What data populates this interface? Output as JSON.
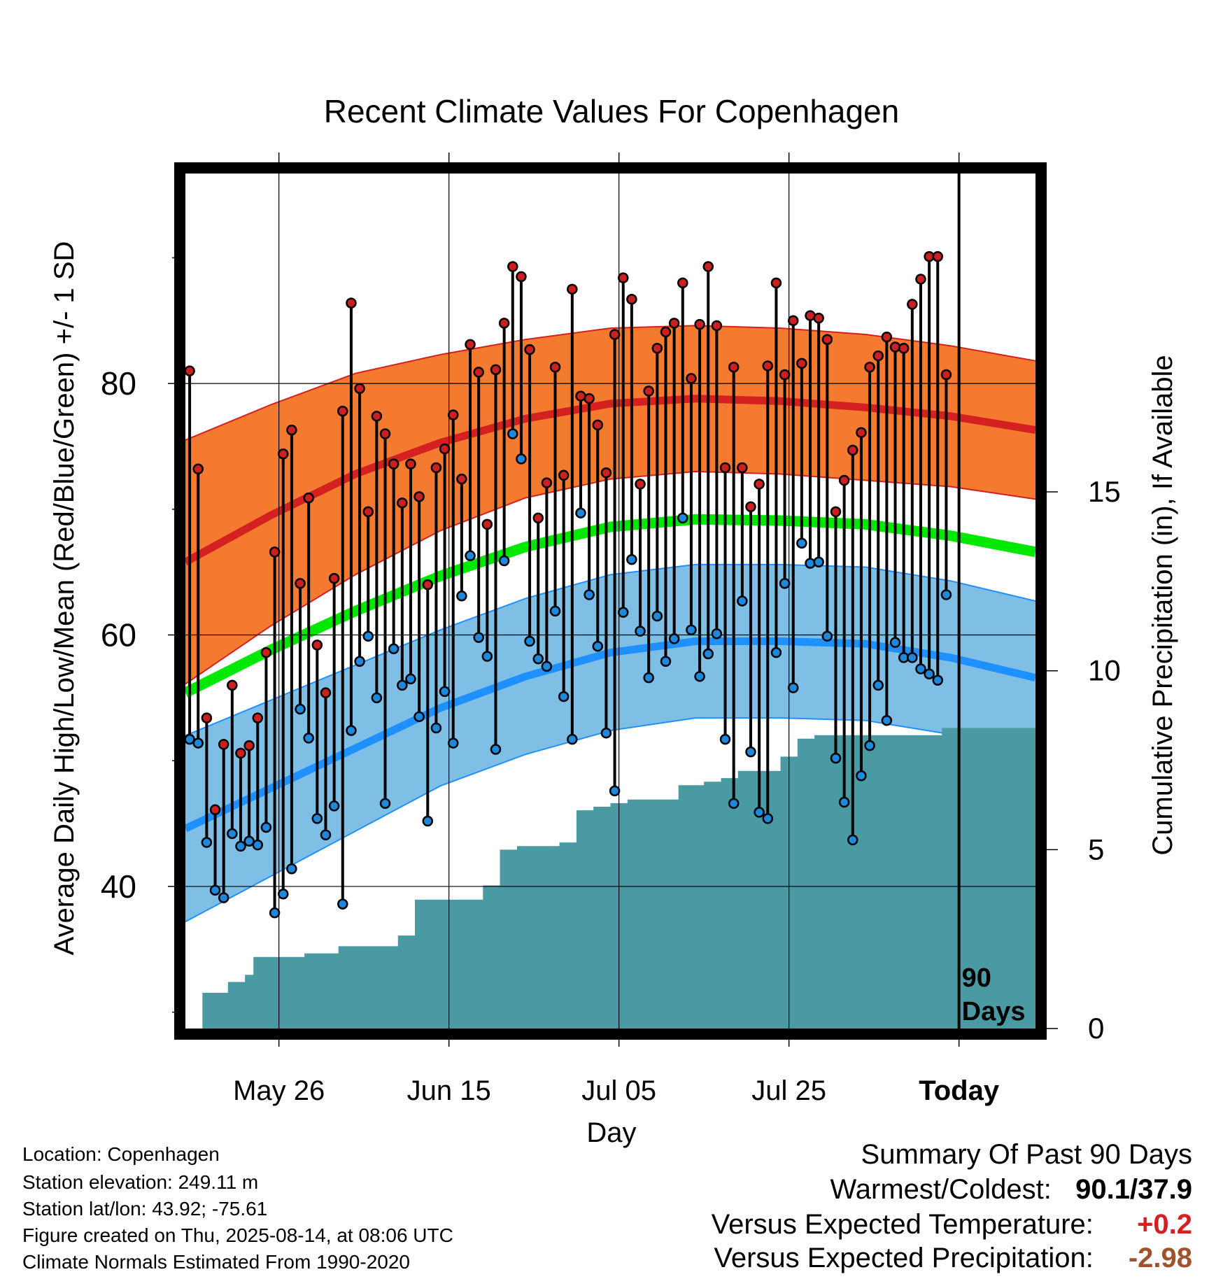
{
  "chart_data": {
    "type": "line",
    "title": "Recent Climate Values For Copenhagen",
    "ylabel": "Average Daily High/Low/Mean (Red/Blue/Green) +/- 1 SD",
    "y2label": "Cumulative Precipitation (in), If Available",
    "xlabel": "Day",
    "ylim": [
      28.7,
      96.7
    ],
    "y2lim": [
      0,
      23.9
    ],
    "yticks": [
      "40",
      "60",
      "80"
    ],
    "y2ticks": [
      "0",
      "5",
      "10",
      "15"
    ],
    "x_tick_labels": [
      "May 26",
      "Jun 15",
      "Jul 05",
      "Jul 25",
      "Today"
    ],
    "x_tick_days": [
      11,
      31,
      51,
      71,
      91
    ],
    "x_range_days": [
      0,
      100
    ],
    "today_label": "90\nDays",
    "normals": {
      "days": [
        0,
        10,
        20,
        30,
        40,
        50,
        60,
        70,
        80,
        90,
        100
      ],
      "high_mean": [
        65.8,
        69.5,
        72.8,
        75.3,
        77.2,
        78.4,
        78.8,
        78.6,
        78.1,
        77.4,
        76.3
      ],
      "high_sd": [
        9.7,
        8.8,
        8.0,
        7.0,
        6.3,
        6.0,
        5.8,
        5.8,
        5.8,
        5.6,
        5.5
      ],
      "low_mean": [
        44.6,
        47.8,
        51.0,
        54.2,
        56.7,
        58.6,
        59.5,
        59.5,
        59.3,
        58.2,
        56.6
      ],
      "low_sd": [
        7.4,
        7.0,
        6.6,
        6.2,
        6.2,
        6.2,
        6.1,
        6.1,
        6.1,
        6.1,
        6.1
      ],
      "mean": [
        55.4,
        58.8,
        61.9,
        64.7,
        67.0,
        68.6,
        69.2,
        69.1,
        68.8,
        67.9,
        66.6
      ]
    },
    "series": [
      {
        "name": "Daily High",
        "values": [
          81.0,
          73.2,
          53.4,
          46.1,
          51.3,
          56.0,
          50.6,
          51.2,
          53.4,
          58.6,
          66.6,
          74.4,
          76.3,
          64.1,
          70.9,
          59.2,
          55.4,
          64.5,
          77.8,
          86.4,
          79.6,
          69.8,
          77.4,
          76.0,
          73.6,
          70.5,
          73.6,
          71.0,
          64.0,
          73.3,
          74.8,
          77.5,
          72.4,
          83.1,
          80.9,
          68.8,
          81.1,
          84.8,
          89.3,
          88.5,
          82.7,
          69.3,
          72.1,
          81.3,
          72.7,
          87.5,
          79.0,
          78.8,
          76.7,
          72.9,
          83.9,
          88.4,
          86.7,
          72.0,
          79.4,
          82.8,
          84.1,
          84.8,
          88.0,
          80.4,
          84.7,
          89.3,
          84.6,
          73.3,
          81.3,
          73.3,
          70.2,
          72.0,
          81.4,
          88.0,
          80.7,
          85.0,
          81.6,
          85.4,
          85.2,
          83.5,
          69.8,
          72.3,
          74.7,
          76.1,
          81.3,
          82.2,
          83.7,
          82.9,
          82.8,
          86.3,
          88.3,
          90.1,
          90.1,
          80.7
        ]
      },
      {
        "name": "Daily Low",
        "values": [
          51.7,
          51.4,
          43.5,
          39.7,
          39.1,
          44.2,
          43.2,
          43.6,
          43.3,
          44.7,
          37.9,
          39.4,
          41.4,
          54.1,
          51.8,
          45.4,
          44.1,
          46.4,
          38.6,
          52.4,
          57.9,
          59.9,
          55.0,
          46.6,
          58.9,
          56.0,
          56.5,
          53.5,
          45.2,
          52.6,
          55.5,
          51.4,
          63.1,
          66.3,
          59.8,
          58.3,
          50.9,
          65.9,
          76.0,
          74.0,
          59.5,
          58.1,
          57.5,
          61.9,
          55.1,
          51.7,
          69.7,
          63.2,
          59.1,
          52.2,
          47.6,
          61.8,
          66.0,
          60.3,
          56.6,
          61.5,
          57.9,
          59.7,
          69.3,
          60.4,
          56.7,
          58.5,
          60.1,
          51.7,
          46.6,
          62.7,
          50.7,
          45.9,
          45.4,
          58.6,
          64.1,
          55.8,
          67.3,
          65.7,
          65.8,
          59.9,
          50.2,
          46.7,
          43.7,
          48.8,
          51.2,
          56.0,
          53.2,
          59.4,
          58.2,
          58.2,
          57.3,
          56.9,
          56.4,
          63.2
        ]
      }
    ],
    "precipitation": {
      "name": "Cumulative Precipitation",
      "values": [
        0.0,
        0.0,
        1.0,
        1.0,
        1.0,
        1.3,
        1.3,
        1.5,
        2.0,
        2.0,
        2.0,
        2.0,
        2.0,
        2.0,
        2.1,
        2.1,
        2.1,
        2.1,
        2.3,
        2.3,
        2.3,
        2.3,
        2.3,
        2.3,
        2.3,
        2.6,
        2.6,
        3.6,
        3.6,
        3.6,
        3.6,
        3.6,
        3.6,
        3.6,
        3.6,
        4.0,
        4.0,
        5.0,
        5.0,
        5.1,
        5.1,
        5.1,
        5.1,
        5.1,
        5.2,
        5.2,
        6.1,
        6.1,
        6.2,
        6.2,
        6.3,
        6.3,
        6.4,
        6.4,
        6.4,
        6.4,
        6.4,
        6.4,
        6.8,
        6.8,
        6.8,
        6.9,
        6.9,
        7.0,
        7.0,
        7.2,
        7.2,
        7.2,
        7.2,
        7.2,
        7.6,
        7.6,
        8.1,
        8.1,
        8.2,
        8.2,
        8.2,
        8.2,
        8.2,
        8.2,
        8.2,
        8.2,
        8.2,
        8.2,
        8.2,
        8.2,
        8.2,
        8.2,
        8.2,
        8.4,
        8.4,
        8.4,
        8.4,
        8.4,
        8.4,
        8.4,
        8.4,
        8.4,
        8.4,
        8.4,
        8.4
      ]
    }
  },
  "info": {
    "location": "Location: Copenhagen",
    "elevation": "Station elevation: 249.11 m",
    "latlon": "Station lat/lon: 43.92; -75.61",
    "created": "Figure created on Thu, 2025-08-14, at 08:06 UTC",
    "normals": "Climate Normals Estimated From 1990-2020"
  },
  "summary": {
    "title": "Summary Of Past 90 Days",
    "warmest_label": "Warmest/Coldest:",
    "warmest_value": "90.1/37.9",
    "temp_label": "Versus Expected Temperature:",
    "temp_value": "+0.2",
    "precip_label": "Versus Expected Precipitation:",
    "precip_value": "-2.98"
  },
  "colors": {
    "high_band": "#f47a30",
    "high_line": "#d42020",
    "low_band": "#7fbfe6",
    "low_line": "#1e90ff",
    "mean_line": "#00e800",
    "precip": "#4a9aa4",
    "high_dot": "#cc1f1f",
    "low_dot": "#1e88dd",
    "temp_value": "#d42020",
    "precip_value": "#a0522d"
  }
}
